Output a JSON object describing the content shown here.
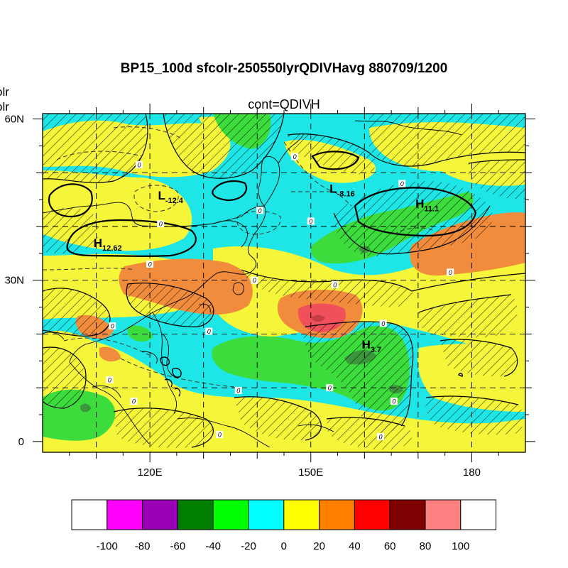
{
  "header": {
    "title": "BP15_100d sfcolr-250550lyrQDIVHavg  880709/1200",
    "subtitle": "cont=QDIVH",
    "left_label_top": "olr",
    "left_label_bottom": "olr"
  },
  "chart_data": {
    "type": "heatmap",
    "title": "BP15_100d sfcolr-250550lyrQDIVHavg  880709/1200",
    "subtitle": "cont=QDIVH",
    "xlim": [
      100,
      190
    ],
    "ylim": [
      -2,
      61
    ],
    "x_ticks": [
      {
        "value": 120,
        "label": "120E"
      },
      {
        "value": 150,
        "label": "150E"
      },
      {
        "value": 180,
        "label": "180"
      }
    ],
    "y_ticks": [
      {
        "value": 0,
        "label": "0"
      },
      {
        "value": 30,
        "label": "30N"
      },
      {
        "value": 60,
        "label": "60N"
      }
    ],
    "grid": "dashed",
    "colorbar": {
      "labels": [
        "-100",
        "-80",
        "-60",
        "-40",
        "-20",
        "0",
        "20",
        "40",
        "60",
        "80",
        "100"
      ],
      "colors": [
        "#ffffff",
        "#ff00ff",
        "#9a00b4",
        "#007f00",
        "#00ff00",
        "#00ffff",
        "#ffff00",
        "#ff8000",
        "#ff0000",
        "#7f0000",
        "#ff8080",
        "#ffffff"
      ]
    },
    "pressure_labels": [
      {
        "type": "L",
        "value": "-12.4",
        "lon": 121.5,
        "lat": 45
      },
      {
        "type": "L",
        "value": "-8.16",
        "lon": 153.5,
        "lat": 46.3
      },
      {
        "type": "H",
        "value": "11.1",
        "lon": 169.5,
        "lat": 43.5
      },
      {
        "type": "H",
        "value": "12.62",
        "lon": 109.5,
        "lat": 36.2
      },
      {
        "type": "H",
        "value": "3.7",
        "lon": 159.5,
        "lat": 17.3
      }
    ],
    "zero_labels": [
      {
        "lon": 118,
        "lat": 51.5
      },
      {
        "lon": 140.5,
        "lat": 43
      },
      {
        "lon": 122,
        "lat": 40.5
      },
      {
        "lon": 147,
        "lat": 53
      },
      {
        "lon": 150,
        "lat": 41
      },
      {
        "lon": 167,
        "lat": 48
      },
      {
        "lon": 120,
        "lat": 33
      },
      {
        "lon": 139.5,
        "lat": 30
      },
      {
        "lon": 154.5,
        "lat": 29.2
      },
      {
        "lon": 176,
        "lat": 31.5
      },
      {
        "lon": 131,
        "lat": 20.5
      },
      {
        "lon": 113,
        "lat": 21.5
      },
      {
        "lon": 163.5,
        "lat": 22
      },
      {
        "lon": 136.5,
        "lat": 9.5
      },
      {
        "lon": 112.5,
        "lat": 11.5
      },
      {
        "lon": 117,
        "lat": 7.5
      },
      {
        "lon": 153.5,
        "lat": 10
      },
      {
        "lon": 165.5,
        "lat": 7.5
      },
      {
        "lon": 133,
        "lat": 1.3
      },
      {
        "lon": 163,
        "lat": 0.9
      }
    ]
  }
}
